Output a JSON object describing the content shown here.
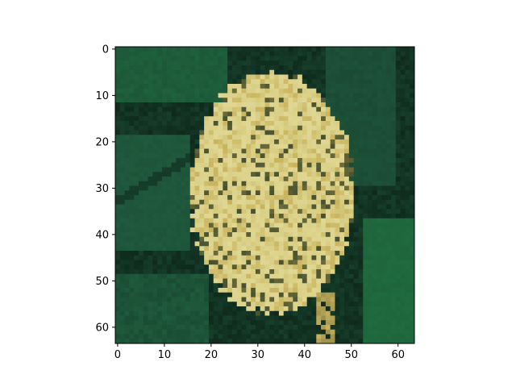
{
  "figure": {
    "background": "#ffffff",
    "image": {
      "description_name": "yellow-flower-cluster",
      "pixel_grid": [
        64,
        64
      ],
      "palette": {
        "dark_green": "#0f2a1c",
        "mid_green": "#1c4a35",
        "leaf_green": "#1f5a3c",
        "bright_green": "#1f6b3e",
        "flower_yellow": "#d9cf86",
        "flower_gold": "#c9b35d",
        "flower_shadow": "#6a6a3a"
      }
    },
    "axes": {
      "xlim": [
        -0.5,
        63.5
      ],
      "ylim": [
        63.5,
        -0.5
      ],
      "x_ticks": [
        0,
        10,
        20,
        30,
        40,
        50,
        60
      ],
      "y_ticks": [
        0,
        10,
        20,
        30,
        40,
        50,
        60
      ],
      "x_tick_labels": [
        "0",
        "10",
        "20",
        "30",
        "40",
        "50",
        "60"
      ],
      "y_tick_labels": [
        "0",
        "10",
        "20",
        "30",
        "40",
        "50",
        "60"
      ]
    }
  }
}
